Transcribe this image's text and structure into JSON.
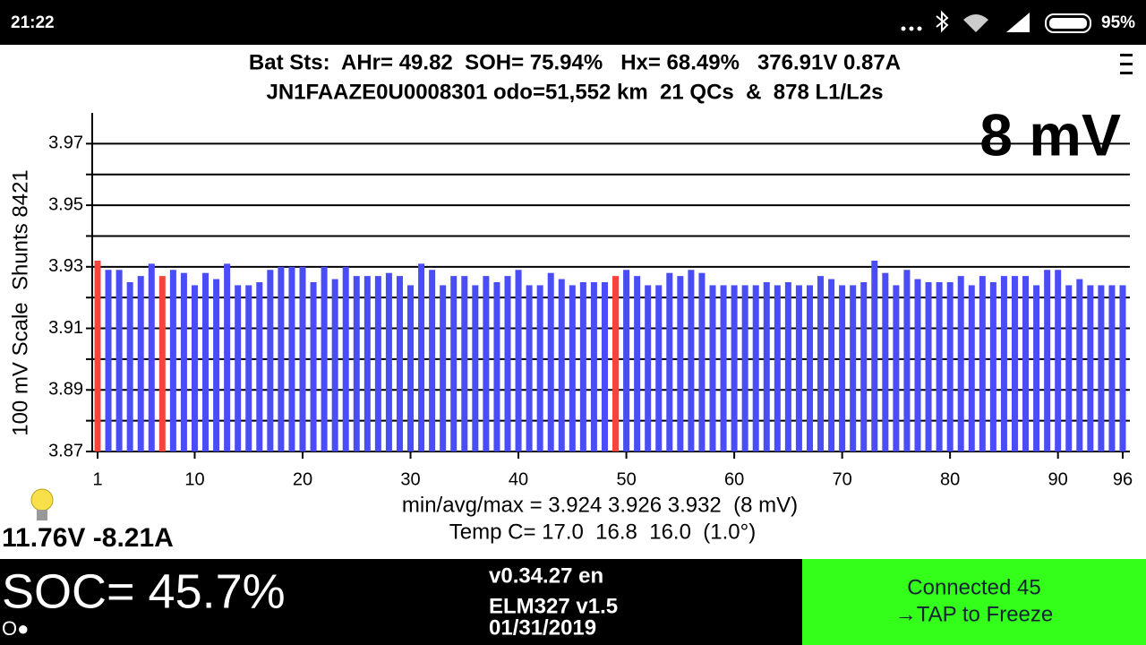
{
  "status_bar": {
    "time": "21:22",
    "battery": "95%"
  },
  "header": {
    "line1": "Bat Sts:  AHr= 49.82  SOH= 75.94%   Hx= 68.49%   376.91V 0.87A",
    "line2": "JN1FAAZE0U0008301 odo=51,552 km  21 QCs  &  878 L1/L2s"
  },
  "chart_data": {
    "type": "bar",
    "ylabel": "100 mV Scale  Shunts 8421",
    "annotation": "8 mV",
    "categories": [
      1,
      2,
      3,
      4,
      5,
      6,
      7,
      8,
      9,
      10,
      11,
      12,
      13,
      14,
      15,
      16,
      17,
      18,
      19,
      20,
      21,
      22,
      23,
      24,
      25,
      26,
      27,
      28,
      29,
      30,
      31,
      32,
      33,
      34,
      35,
      36,
      37,
      38,
      39,
      40,
      41,
      42,
      43,
      44,
      45,
      46,
      47,
      48,
      49,
      50,
      51,
      52,
      53,
      54,
      55,
      56,
      57,
      58,
      59,
      60,
      61,
      62,
      63,
      64,
      65,
      66,
      67,
      68,
      69,
      70,
      71,
      72,
      73,
      74,
      75,
      76,
      77,
      78,
      79,
      80,
      81,
      82,
      83,
      84,
      85,
      86,
      87,
      88,
      89,
      90,
      91,
      92,
      93,
      94,
      95,
      96
    ],
    "xticks": [
      1,
      10,
      20,
      30,
      40,
      50,
      60,
      70,
      80,
      90,
      96
    ],
    "series": [
      {
        "color": "#4a4cf5",
        "values": [
          3.932,
          3.929,
          3.929,
          3.925,
          3.927,
          3.931,
          3.927,
          3.929,
          3.928,
          3.924,
          3.928,
          3.926,
          3.931,
          3.924,
          3.924,
          3.925,
          3.929,
          3.93,
          3.93,
          3.93,
          3.925,
          3.93,
          3.926,
          3.93,
          3.927,
          3.927,
          3.927,
          3.928,
          3.927,
          3.924,
          3.931,
          3.929,
          3.924,
          3.927,
          3.927,
          3.924,
          3.927,
          3.925,
          3.927,
          3.929,
          3.924,
          3.924,
          3.928,
          3.926,
          3.924,
          3.925,
          3.925,
          3.925,
          3.927,
          3.929,
          3.927,
          3.924,
          3.924,
          3.928,
          3.927,
          3.929,
          3.928,
          3.924,
          3.924,
          3.924,
          3.924,
          3.924,
          3.925,
          3.924,
          3.925,
          3.924,
          3.924,
          3.927,
          3.926,
          3.924,
          3.924,
          3.925,
          3.932,
          3.928,
          3.924,
          3.929,
          3.926,
          3.925,
          3.925,
          3.925,
          3.927,
          3.924,
          3.927,
          3.925,
          3.927,
          3.927,
          3.927,
          3.924,
          3.929,
          3.929,
          3.924,
          3.926,
          3.924,
          3.924,
          3.924,
          3.924
        ]
      }
    ],
    "highlight_color": "#f5443c",
    "highlighted": [
      1,
      7,
      49
    ],
    "ylim": [
      3.87,
      3.98
    ],
    "yticks": [
      3.87,
      3.89,
      3.91,
      3.93,
      3.95,
      3.97
    ],
    "minor_yticks": [
      3.88,
      3.9,
      3.92,
      3.94,
      3.96
    ],
    "grid": true,
    "stats": "min/avg/max = 3.924 3.926 3.932  (8 mV)",
    "temps": "Temp C= 17.0  16.8  16.0  (1.0°)"
  },
  "aux": "11.76V -8.21A",
  "footer": {
    "soc": "SOC= 45.7%",
    "indicator": "O●",
    "version": "v0.34.27 en",
    "adapter": "ELM327 v1.5",
    "date": "01/31/2019",
    "connected": "Connected 45",
    "tap": "→TAP to Freeze"
  }
}
